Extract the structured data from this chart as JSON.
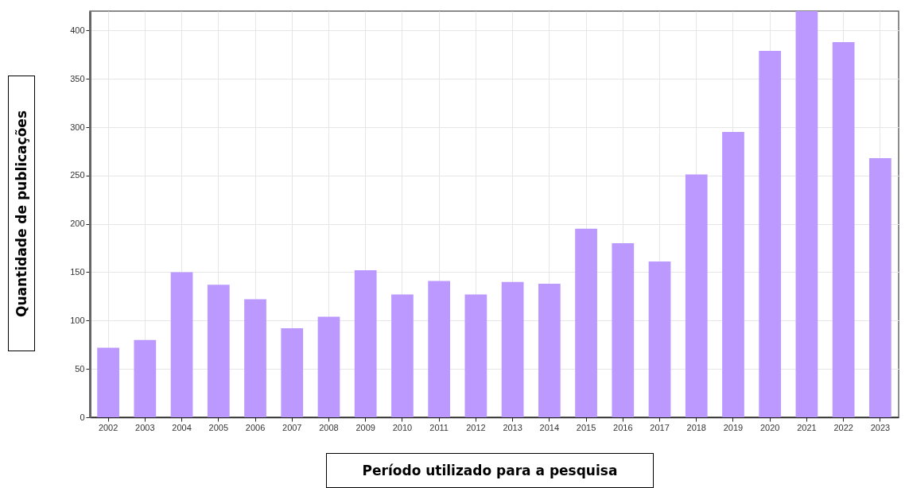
{
  "chart_data": {
    "type": "bar",
    "xlabel": "Período utilizado para a pesquisa",
    "ylabel": "Quantidade de publicações",
    "categories": [
      "2002",
      "2003",
      "2004",
      "2005",
      "2006",
      "2007",
      "2008",
      "2009",
      "2010",
      "2011",
      "2012",
      "2013",
      "2014",
      "2015",
      "2016",
      "2017",
      "2018",
      "2019",
      "2020",
      "2021",
      "2022",
      "2023"
    ],
    "values": [
      72,
      80,
      150,
      137,
      122,
      92,
      104,
      152,
      127,
      141,
      127,
      140,
      138,
      195,
      180,
      161,
      251,
      295,
      379,
      420,
      388,
      268
    ],
    "color": "#bb99ff",
    "ylim": [
      0,
      420
    ],
    "yticks": [
      0,
      50,
      100,
      150,
      200,
      250,
      300,
      350,
      400
    ],
    "grid": true
  }
}
